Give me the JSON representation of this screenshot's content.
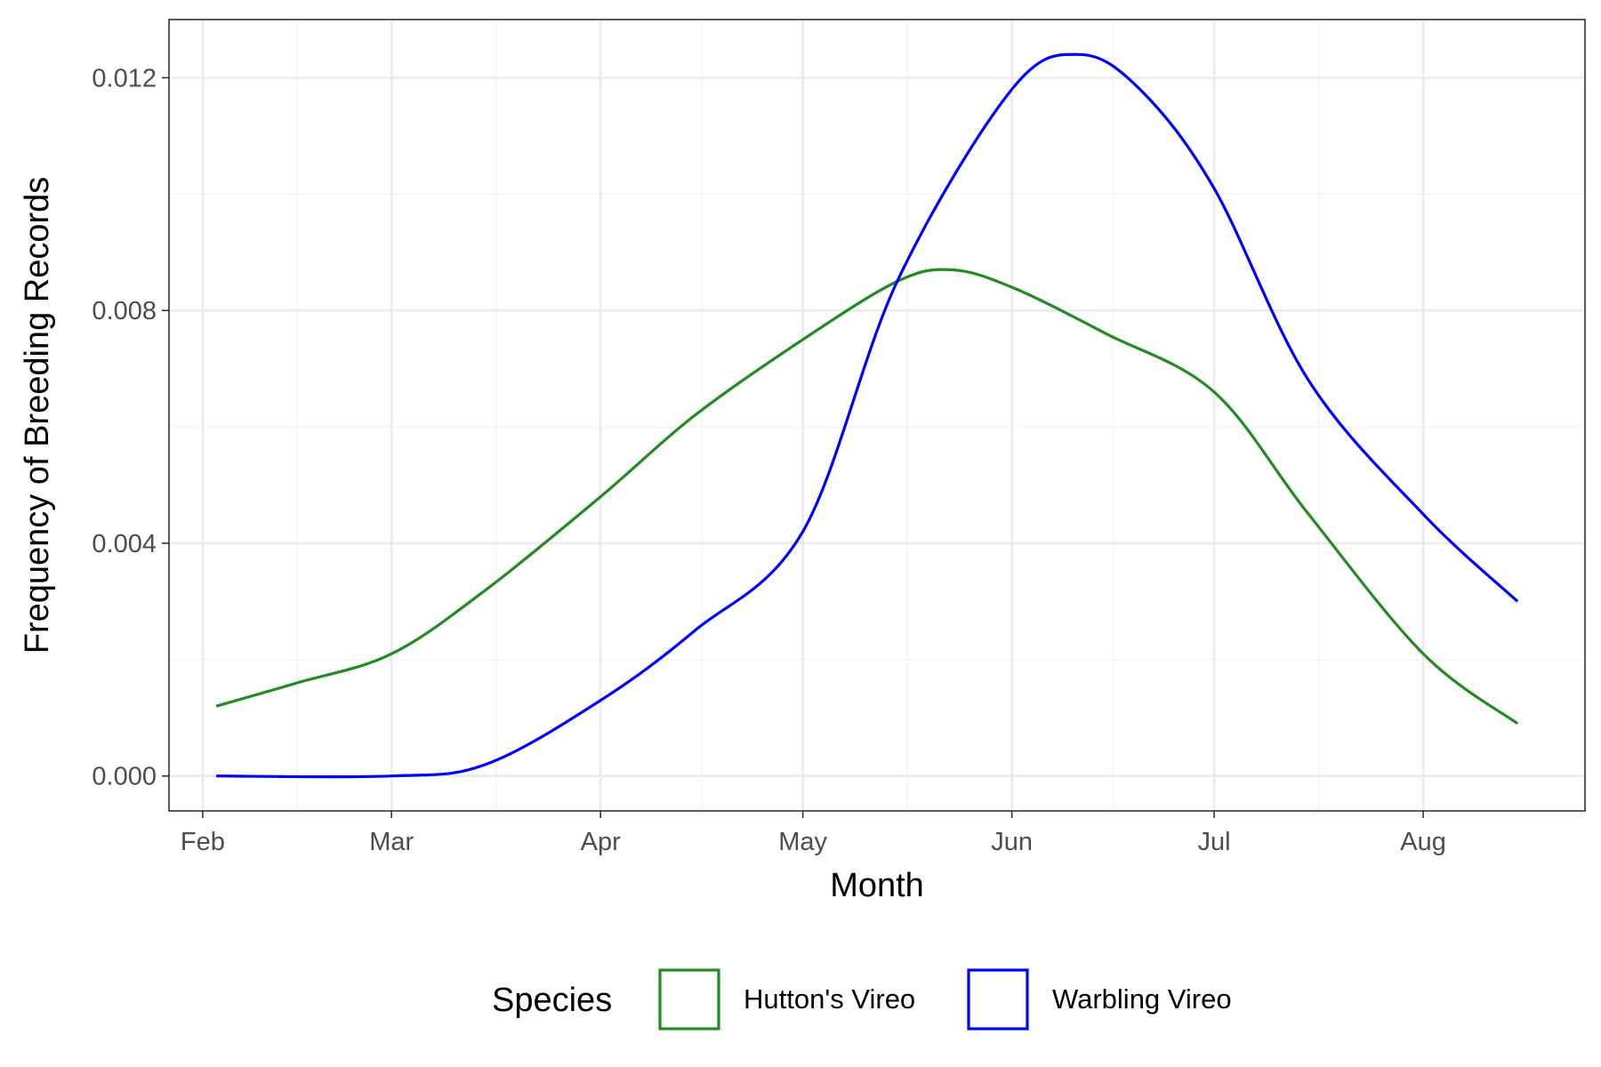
{
  "chart_data": {
    "type": "line",
    "xlabel": "Month",
    "ylabel": "Frequency of Breeding Records",
    "x_ticks": [
      "Feb",
      "Mar",
      "Apr",
      "May",
      "Jun",
      "Jul",
      "Aug"
    ],
    "xlim": [
      "2021-01-27",
      "2021-08-25"
    ],
    "ylim": [
      -0.0006,
      0.013
    ],
    "y_ticks": [
      "0.000",
      "0.004",
      "0.008",
      "0.012"
    ],
    "grid": true,
    "legend": {
      "title": "Species",
      "position": "bottom"
    },
    "series": [
      {
        "name": "Hutton's Vireo",
        "color": "#228B22",
        "x": [
          "2021-02-03",
          "2021-02-15",
          "2021-03-01",
          "2021-03-15",
          "2021-04-01",
          "2021-04-15",
          "2021-05-01",
          "2021-05-15",
          "2021-05-23",
          "2021-06-01",
          "2021-06-15",
          "2021-07-01",
          "2021-07-15",
          "2021-08-01",
          "2021-08-15"
        ],
        "y": [
          0.0012,
          0.0016,
          0.0021,
          0.0032,
          0.0048,
          0.0062,
          0.0075,
          0.0085,
          0.0087,
          0.0084,
          0.0076,
          0.0066,
          0.0045,
          0.0021,
          0.0009
        ]
      },
      {
        "name": "Warbling Vireo",
        "color": "#0000FF",
        "x": [
          "2021-02-03",
          "2021-03-01",
          "2021-03-15",
          "2021-04-01",
          "2021-04-15",
          "2021-05-01",
          "2021-05-15",
          "2021-06-01",
          "2021-06-11",
          "2021-06-20",
          "2021-07-01",
          "2021-07-15",
          "2021-08-01",
          "2021-08-15"
        ],
        "y": [
          0.0,
          0.0,
          0.0002,
          0.0013,
          0.0025,
          0.0042,
          0.0085,
          0.0118,
          0.0124,
          0.0118,
          0.0101,
          0.0068,
          0.0045,
          0.003
        ]
      }
    ]
  }
}
